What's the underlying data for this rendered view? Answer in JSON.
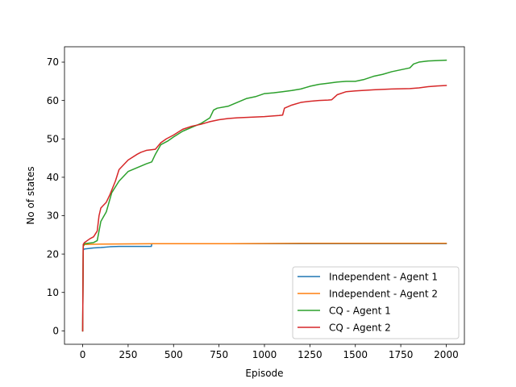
{
  "chart_data": {
    "type": "line",
    "title": "",
    "xlabel": "Episode",
    "ylabel": "No of states",
    "xlim": [
      -100,
      2100
    ],
    "ylim": [
      -3.5,
      74
    ],
    "xticks": [
      0,
      250,
      500,
      750,
      1000,
      1250,
      1500,
      1750,
      2000
    ],
    "yticks": [
      0,
      10,
      20,
      30,
      40,
      50,
      60,
      70
    ],
    "grid": false,
    "legend_position": "lower-right",
    "series": [
      {
        "name": "Independent - Agent 1",
        "color": "#1f77b4",
        "x": [
          0,
          3,
          8,
          60,
          100,
          150,
          200,
          300,
          378,
          380,
          500,
          1000,
          1500,
          2000
        ],
        "y": [
          0,
          21,
          21.3,
          21.6,
          21.7,
          21.9,
          22.0,
          22.0,
          22.0,
          22.7,
          22.7,
          22.7,
          22.7,
          22.7
        ]
      },
      {
        "name": "Independent - Agent 2",
        "color": "#ff7f0e",
        "x": [
          0,
          3,
          10,
          100,
          400,
          800,
          1200,
          1600,
          2000
        ],
        "y": [
          0,
          22,
          22.5,
          22.6,
          22.7,
          22.7,
          22.8,
          22.8,
          22.8
        ]
      },
      {
        "name": "CQ - Agent 1",
        "color": "#2ca02c",
        "x": [
          0,
          3,
          10,
          60,
          80,
          90,
          100,
          130,
          160,
          200,
          250,
          300,
          350,
          380,
          400,
          430,
          470,
          500,
          550,
          600,
          650,
          700,
          720,
          740,
          800,
          850,
          900,
          950,
          1000,
          1050,
          1100,
          1150,
          1200,
          1250,
          1300,
          1350,
          1400,
          1450,
          1500,
          1550,
          1600,
          1650,
          1700,
          1750,
          1800,
          1820,
          1850,
          1900,
          1950,
          2000
        ],
        "y": [
          0,
          22,
          22.7,
          23,
          23.5,
          26,
          28.5,
          31,
          36,
          39,
          41.5,
          42.5,
          43.5,
          44,
          46,
          48.5,
          49.5,
          50.5,
          52,
          53,
          54,
          55.5,
          57.5,
          58,
          58.5,
          59.5,
          60.5,
          61,
          61.8,
          62,
          62.3,
          62.6,
          63,
          63.7,
          64.2,
          64.5,
          64.8,
          65,
          65,
          65.5,
          66.3,
          66.8,
          67.5,
          68,
          68.5,
          69.5,
          70,
          70.3,
          70.4,
          70.5
        ]
      },
      {
        "name": "CQ - Agent 2",
        "color": "#d62728",
        "x": [
          0,
          3,
          10,
          40,
          60,
          80,
          90,
          100,
          130,
          150,
          180,
          200,
          250,
          300,
          320,
          350,
          400,
          430,
          460,
          500,
          550,
          600,
          650,
          700,
          750,
          800,
          850,
          900,
          950,
          1000,
          1050,
          1080,
          1100,
          1110,
          1150,
          1200,
          1250,
          1300,
          1350,
          1370,
          1400,
          1450,
          1500,
          1600,
          1700,
          1800,
          1850,
          1900,
          1950,
          2000
        ],
        "y": [
          0,
          22.5,
          23,
          24,
          24.5,
          26,
          30,
          32,
          33.5,
          35.5,
          39,
          42,
          44.5,
          46,
          46.5,
          47,
          47.3,
          49,
          50,
          51,
          52.5,
          53.3,
          53.8,
          54.5,
          55,
          55.3,
          55.5,
          55.6,
          55.7,
          55.8,
          56,
          56.1,
          56.2,
          58,
          58.8,
          59.5,
          59.8,
          60,
          60.1,
          60.2,
          61.5,
          62.3,
          62.5,
          62.8,
          63,
          63.1,
          63.3,
          63.6,
          63.8,
          63.9
        ]
      }
    ]
  }
}
